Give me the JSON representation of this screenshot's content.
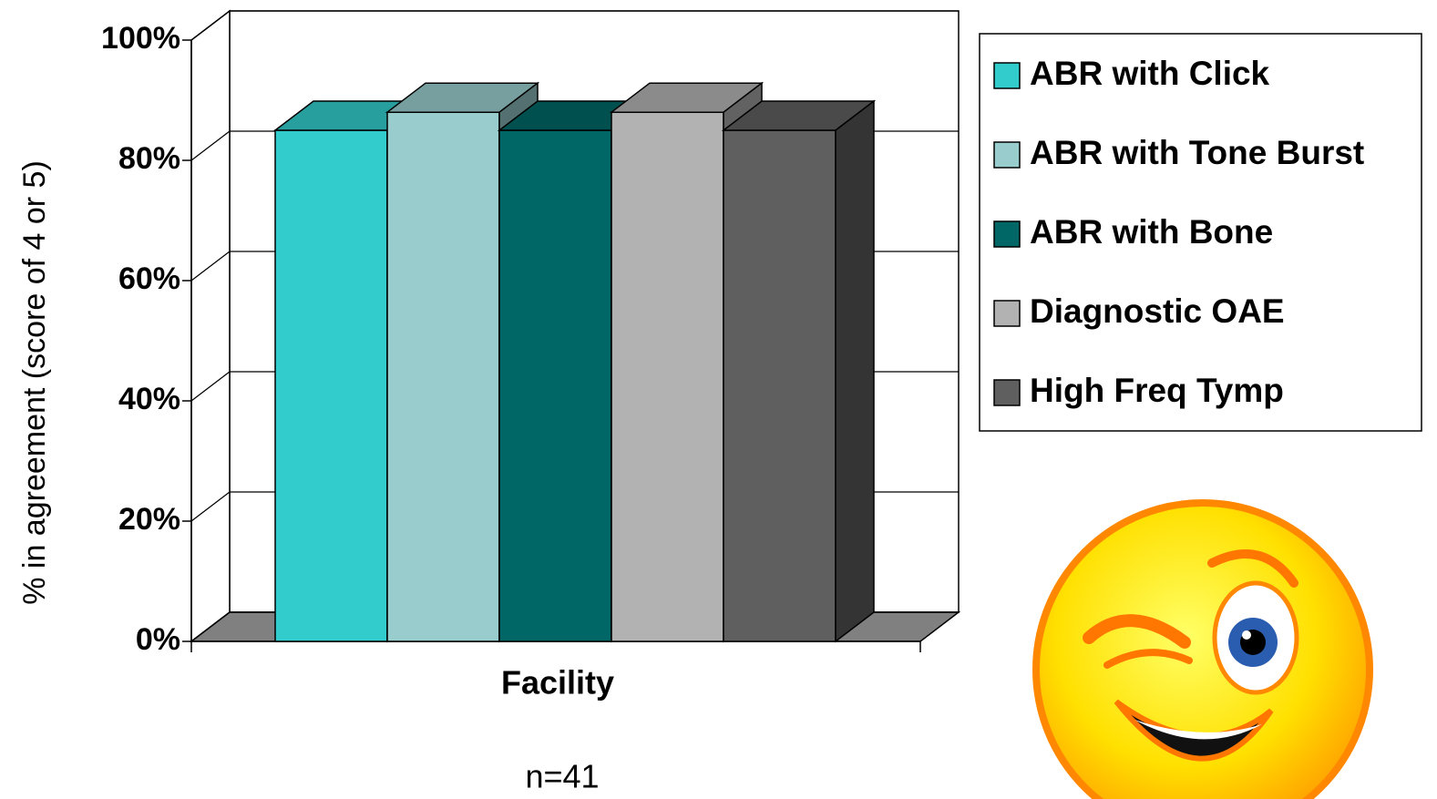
{
  "chart_data": {
    "type": "bar3d",
    "y_label": "% in agreement (score of 4 or 5)",
    "categories": [
      "Facility"
    ],
    "annotation": "n=41",
    "series": [
      {
        "name": "ABR with Click",
        "color": "#33CCCC",
        "values": [
          85
        ]
      },
      {
        "name": "ABR with Tone Burst",
        "color": "#99CCCC",
        "values": [
          88
        ]
      },
      {
        "name": "ABR with Bone",
        "color": "#006666",
        "values": [
          85
        ]
      },
      {
        "name": "Diagnostic OAE",
        "color": "#B2B2B2",
        "values": [
          88
        ]
      },
      {
        "name": "High Freq Tymp",
        "color": "#5F5F5F",
        "values": [
          85
        ]
      }
    ],
    "ylim": [
      0,
      100
    ],
    "yticks": [
      {
        "value": 0,
        "label": "0%"
      },
      {
        "value": 20,
        "label": "20%"
      },
      {
        "value": 40,
        "label": "40%"
      },
      {
        "value": 60,
        "label": "60%"
      },
      {
        "value": 80,
        "label": "80%"
      },
      {
        "value": 100,
        "label": "100%"
      }
    ],
    "grid": true
  }
}
